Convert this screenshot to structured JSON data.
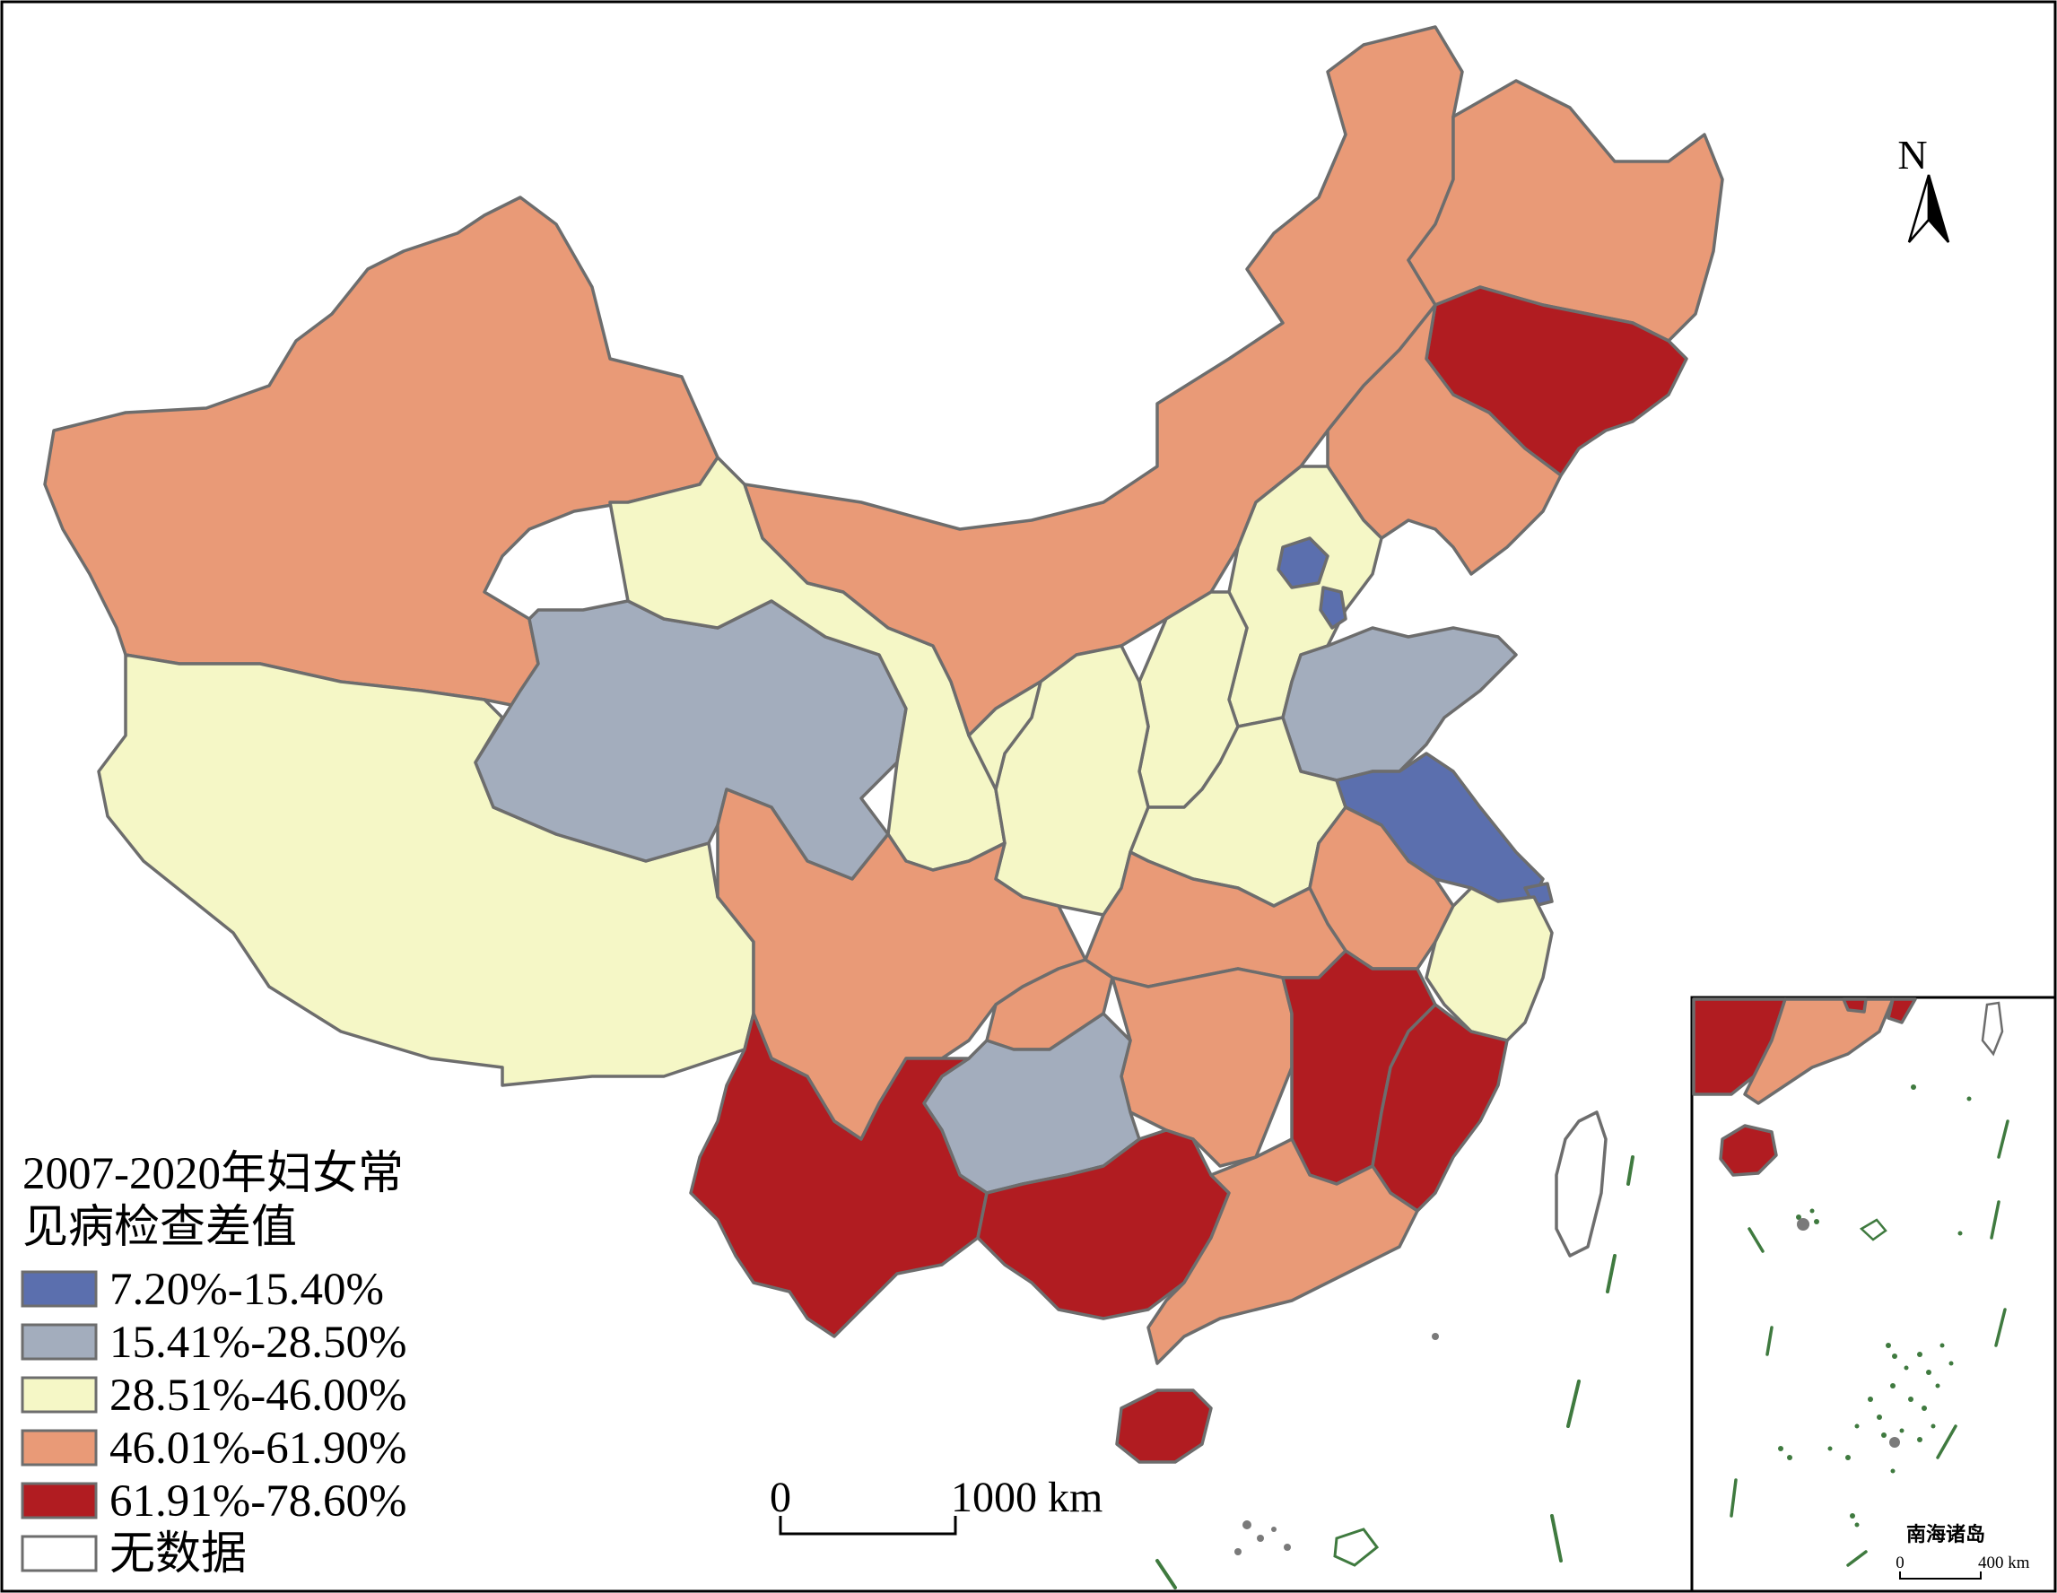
{
  "legend": {
    "title_line1": "2007-2020年妇女常",
    "title_line2": "见病检查差值",
    "classes": [
      {
        "label": "7.20%-15.40%",
        "color": "#5b6fae"
      },
      {
        "label": "15.41%-28.50%",
        "color": "#a3adbd"
      },
      {
        "label": "28.51%-46.00%",
        "color": "#f5f7c6"
      },
      {
        "label": "46.01%-61.90%",
        "color": "#e99a77"
      },
      {
        "label": "61.91%-78.60%",
        "color": "#b11c21"
      },
      {
        "label": "无数据",
        "color": "#ffffff"
      }
    ]
  },
  "north_arrow": {
    "label": "N"
  },
  "scale_bar": {
    "start": "0",
    "end": "1000 km"
  },
  "inset": {
    "caption": "南海诸岛",
    "scale_start": "0",
    "scale_end": "400 km"
  },
  "colors": {
    "border": "#6d6d6d",
    "sea_islands": "#3f7a3f",
    "frame": "#000000"
  }
}
